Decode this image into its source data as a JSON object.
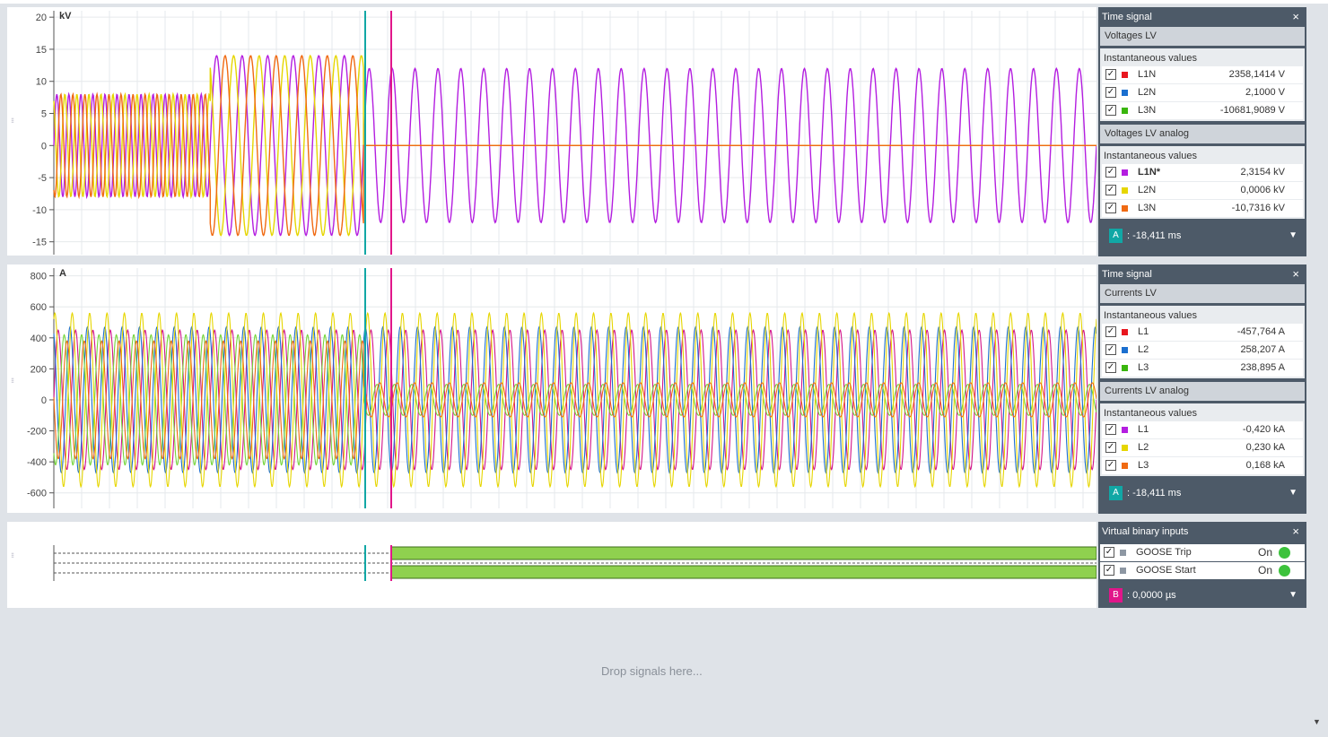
{
  "colors": {
    "red": "#e8161f",
    "blue": "#1b6fcf",
    "green": "#3ab60d",
    "purple": "#b41ee0",
    "yellow": "#e6d600",
    "orange": "#f06a12",
    "magenta": "#d3158a",
    "lightgreen": "#75d63a",
    "cursor_a": "#11a7a5",
    "cursor_b": "#e1168a",
    "bar_green": "#8fd14f"
  },
  "voltage_chart": {
    "unit": "kV",
    "ticks": [
      "20",
      "15",
      "10",
      "5",
      "0",
      "-5",
      "-10",
      "-15"
    ]
  },
  "current_chart": {
    "unit": "A",
    "ticks": [
      "800",
      "600",
      "400",
      "200",
      "0",
      "-200",
      "-400",
      "-600"
    ]
  },
  "chart_data": [
    {
      "type": "line",
      "ylabel": "kV",
      "ylim": [
        -17,
        21
      ],
      "series": [
        {
          "name": "L1N",
          "color": "#b41ee0",
          "segments": [
            {
              "from": 0,
              "to": 0.15,
              "amplitude": 8,
              "cycles": 13
            },
            {
              "from": 0.15,
              "to": 0.297,
              "amplitude": 14,
              "cycles": 6
            },
            {
              "from": 0.297,
              "to": 1.0,
              "amplitude": 12,
              "cycles": 32
            }
          ]
        },
        {
          "name": "L2N",
          "color": "#e6d600",
          "segments": [
            {
              "from": 0,
              "to": 0.15,
              "amplitude": 8,
              "cycles": 13
            },
            {
              "from": 0.15,
              "to": 0.297,
              "amplitude": 14,
              "cycles": 6
            },
            {
              "from": 0.297,
              "to": 1.0,
              "amplitude": 0,
              "cycles": 0
            }
          ]
        },
        {
          "name": "L3N",
          "color": "#f06a12",
          "segments": [
            {
              "from": 0,
              "to": 0.15,
              "amplitude": 8,
              "cycles": 13
            },
            {
              "from": 0.15,
              "to": 0.297,
              "amplitude": 14,
              "cycles": 6
            },
            {
              "from": 0.297,
              "to": 1.0,
              "amplitude": 0,
              "cycles": 0
            }
          ]
        }
      ]
    },
    {
      "type": "line",
      "ylabel": "A",
      "ylim": [
        -700,
        850
      ],
      "series": [
        {
          "name": "L1",
          "color": "#d3158a",
          "amplitude": 450,
          "cycles": 60
        },
        {
          "name": "L2",
          "color": "#1b6fcf",
          "amplitude": 470,
          "cycles": 60
        },
        {
          "name": "L3",
          "color": "#75d63a",
          "amplitude": 420,
          "cycles": 60
        },
        {
          "name": "L2",
          "color": "#e6d600",
          "amplitude": 560,
          "cycles": 60
        },
        {
          "name": "L3",
          "color": "#f06a12",
          "amplitude": 110,
          "cycles": 60
        }
      ]
    }
  ],
  "panels": {
    "voltage": {
      "title": "Time signal",
      "close": "×",
      "group1": "Voltages LV",
      "group1_box": "Instantaneous values",
      "group1_rows": [
        {
          "label": "L1N",
          "value": "2358,1414 V",
          "color": "#e8161f"
        },
        {
          "label": "L2N",
          "value": "2,1000 V",
          "color": "#1b6fcf"
        },
        {
          "label": "L3N",
          "value": "-10681,9089 V",
          "color": "#3ab60d"
        }
      ],
      "group2": "Voltages LV analog",
      "group2_box": "Instantaneous values",
      "group2_rows": [
        {
          "label": "L1N*",
          "value": "2,3154 kV",
          "color": "#b41ee0"
        },
        {
          "label": "L2N",
          "value": "0,0006 kV",
          "color": "#e6d600"
        },
        {
          "label": "L3N",
          "value": "-10,7316 kV",
          "color": "#f06a12"
        }
      ],
      "cursor_label": "A",
      "cursor_value": ": -18,411 ms",
      "dropdown": "▼"
    },
    "current": {
      "title": "Time signal",
      "close": "×",
      "group1": "Currents LV",
      "group1_box": "Instantaneous values",
      "group1_rows": [
        {
          "label": "L1",
          "value": "-457,764 A",
          "color": "#e8161f"
        },
        {
          "label": "L2",
          "value": "258,207 A",
          "color": "#1b6fcf"
        },
        {
          "label": "L3",
          "value": "238,895 A",
          "color": "#3ab60d"
        }
      ],
      "group2": "Currents LV analog",
      "group2_box": "Instantaneous values",
      "group2_rows": [
        {
          "label": "L1",
          "value": "-0,420 kA",
          "color": "#b41ee0"
        },
        {
          "label": "L2",
          "value": "0,230 kA",
          "color": "#e6d600"
        },
        {
          "label": "L3",
          "value": "0,168 kA",
          "color": "#f06a12"
        }
      ],
      "cursor_label": "A",
      "cursor_value": ": -18,411 ms",
      "dropdown": "▼"
    },
    "binary": {
      "title": "Virtual binary inputs",
      "close": "×",
      "rows": [
        {
          "label": "GOOSE Trip",
          "state": "On"
        },
        {
          "label": "GOOSE Start",
          "state": "On"
        }
      ],
      "cursor_label": "B",
      "cursor_value": ": 0,0000 µs",
      "dropdown": "▼"
    }
  },
  "drop_zone": "Drop signals here...",
  "scroll_arrow": "▼",
  "check_mark": "✓"
}
